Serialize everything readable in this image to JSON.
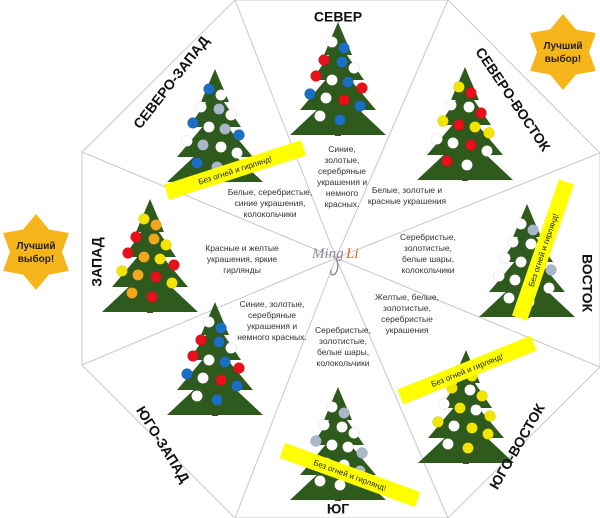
{
  "logo": {
    "text_left": "Ming",
    "text_right": "Li"
  },
  "badge_text_line1": "Лучший",
  "badge_text_line2": "выбор!",
  "banner_text": "Без огней и гирлянд!",
  "colors": {
    "banner": "#ffff00",
    "badge": "#f7b51c",
    "divider": "#c8c8c8",
    "tree": "#2f5a1e"
  },
  "sectors": [
    {
      "id": "north",
      "label": "СЕВЕР",
      "desc": [
        "Синие,",
        "золотые,",
        "серебряные",
        "украшения и",
        "немного",
        "красных."
      ],
      "ornaments": [
        "white",
        "blue",
        "red",
        "blue",
        "white",
        "red",
        "white",
        "blue",
        "red",
        "blue",
        "white",
        "red",
        "blue",
        "white",
        "blue"
      ],
      "banner": false,
      "best": false
    },
    {
      "id": "northeast",
      "label": "СЕВЕРО-ВОСТОК",
      "desc": [
        "Белые, золотые и",
        "красные украшения"
      ],
      "ornaments": [
        "yellow",
        "red",
        "white",
        "white",
        "red",
        "yellow",
        "red",
        "yellow",
        "yellow",
        "white",
        "white",
        "red",
        "white",
        "red",
        "white"
      ],
      "banner": false,
      "best": true
    },
    {
      "id": "east",
      "label": "ВОСТОК",
      "desc": [
        "Серебристые,",
        "золотистые,",
        "белые шары,",
        "колокольчики"
      ],
      "ornaments": [
        "white",
        "silver",
        "white",
        "white",
        "silver",
        "white",
        "white",
        "white",
        "silver",
        "white",
        "white",
        "silver",
        "white",
        "white",
        "white"
      ],
      "banner": true,
      "best": false
    },
    {
      "id": "southeast",
      "label": "ЮГО-ВОСТОК",
      "desc": [
        "Желтые, белые,",
        "золотистые,",
        "серебристые",
        "украшения"
      ],
      "ornaments": [
        "white",
        "yellow",
        "yellow",
        "white",
        "yellow",
        "white",
        "yellow",
        "white",
        "yellow",
        "yellow",
        "white",
        "yellow",
        "yellow",
        "white",
        "yellow"
      ],
      "banner": true,
      "best": false
    },
    {
      "id": "south",
      "label": "ЮГ",
      "desc": [
        "Серебристые,",
        "золотистые,",
        "белые шары,",
        "колокольчики"
      ],
      "ornaments": [
        "white",
        "silver",
        "white",
        "white",
        "white",
        "silver",
        "white",
        "white",
        "silver",
        "white",
        "white",
        "white",
        "silver",
        "white",
        "white"
      ],
      "banner": true,
      "best": false
    },
    {
      "id": "southwest",
      "label": "ЮГО-ЗАПАД",
      "desc": [
        "Синие, золотые,",
        "серебряные",
        "украшения и",
        "немного красных."
      ],
      "ornaments": [
        "white",
        "blue",
        "red",
        "blue",
        "white",
        "red",
        "white",
        "blue",
        "red",
        "blue",
        "white",
        "red",
        "blue",
        "white",
        "blue"
      ],
      "banner": false,
      "best": false
    },
    {
      "id": "west",
      "label": "ЗАПАД",
      "desc": [
        "Красные и желтые",
        "украшения, яркие",
        "гирлянды"
      ],
      "ornaments": [
        "yellow",
        "orange",
        "red",
        "orange",
        "yellow",
        "red",
        "orange",
        "yellow",
        "red",
        "yellow",
        "orange",
        "red",
        "yellow",
        "orange",
        "red"
      ],
      "banner": false,
      "best": true
    },
    {
      "id": "northwest",
      "label": "СЕВЕРО-ЗАПАД",
      "desc": [
        "Белые, серебристые,",
        "синие украшения,",
        "колокольчики"
      ],
      "ornaments": [
        "blue",
        "white",
        "white",
        "silver",
        "white",
        "blue",
        "white",
        "silver",
        "blue",
        "white",
        "silver",
        "white",
        "white",
        "blue",
        "silver"
      ],
      "banner": true,
      "best": false
    }
  ]
}
